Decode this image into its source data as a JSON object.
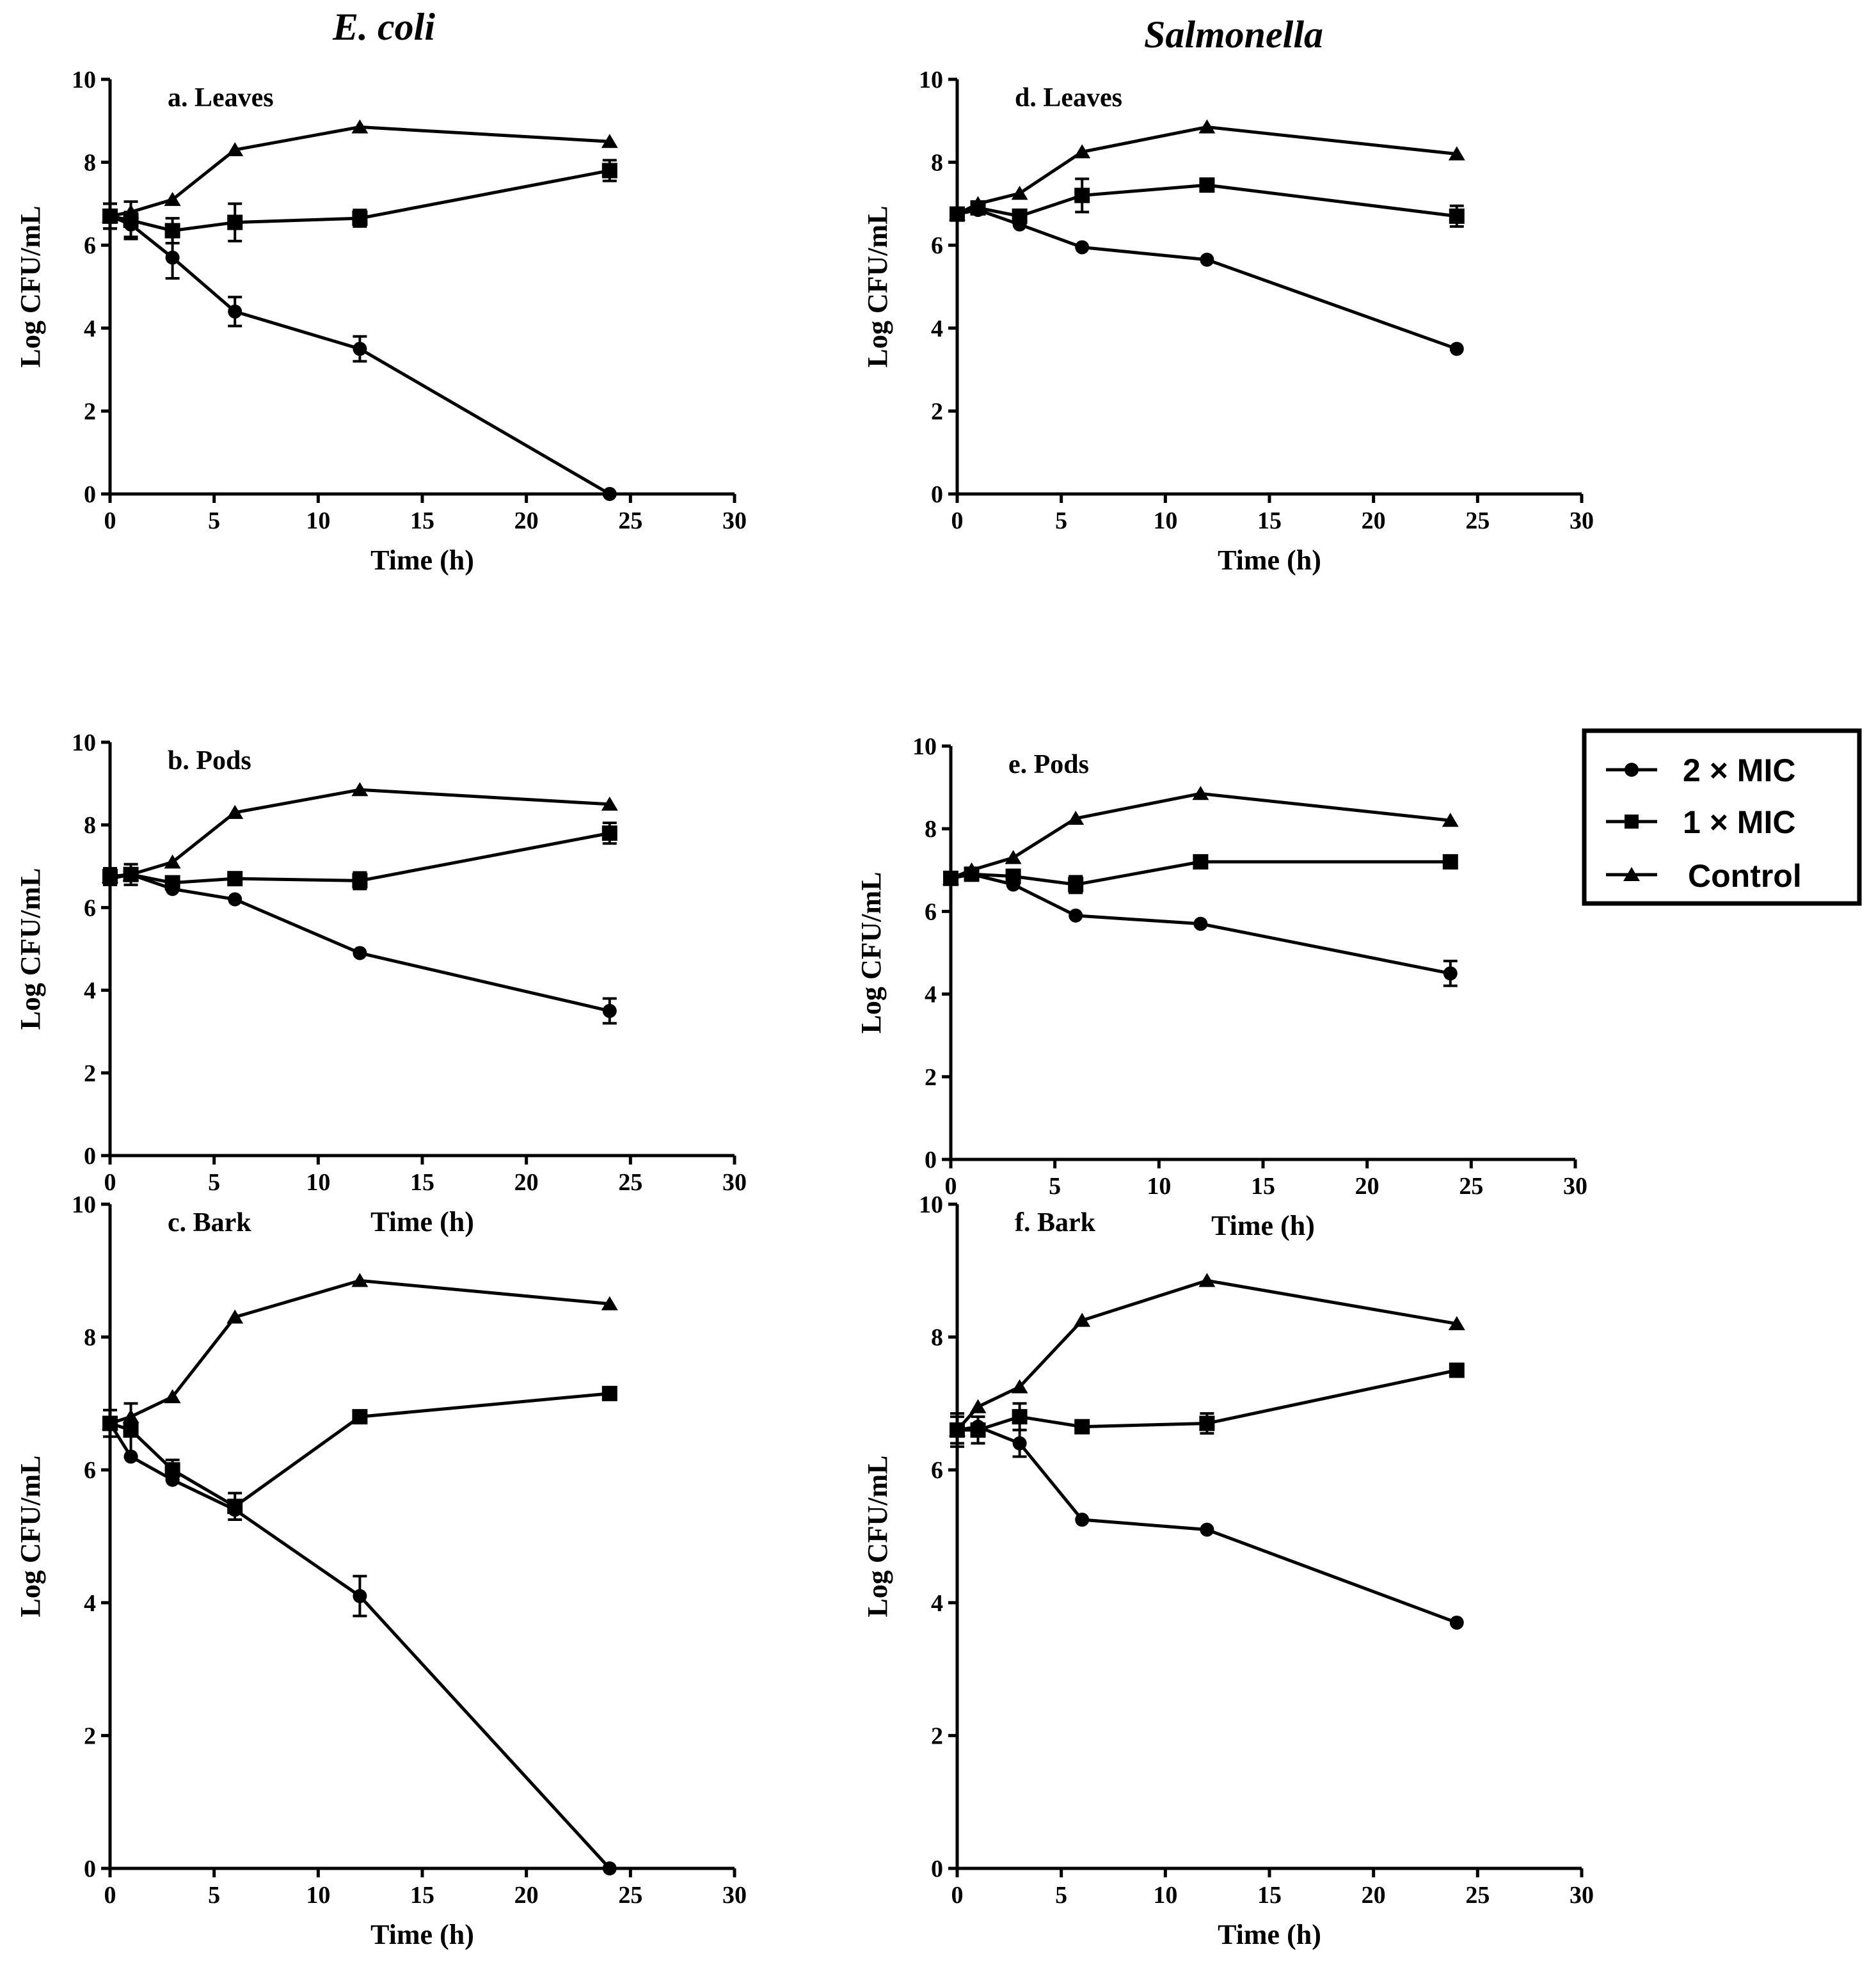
{
  "column_titles": [
    "E. coli",
    "Salmonella"
  ],
  "legend": {
    "entries": [
      {
        "label": "2 × MIC",
        "marker": "circle"
      },
      {
        "label": "1 × MIC",
        "marker": "square"
      },
      {
        "label": "Control",
        "marker": "triangle"
      }
    ]
  },
  "chart_data": [
    {
      "type": "line",
      "title": "a. Leaves",
      "xlabel": "Time (h)",
      "ylabel": "Log CFU/mL",
      "xlim": [
        0,
        30
      ],
      "ylim": [
        0,
        10
      ],
      "xticks": [
        "0",
        "5",
        "10",
        "15",
        "20",
        "25",
        "30"
      ],
      "yticks": [
        "0",
        "2",
        "4",
        "6",
        "8",
        "10"
      ],
      "x": [
        0,
        1,
        3,
        6,
        12,
        24
      ],
      "series": [
        {
          "name": "2 × MIC",
          "values": [
            6.7,
            6.5,
            5.7,
            4.4,
            3.5,
            0.0
          ],
          "errors": [
            0.3,
            0.3,
            0.5,
            0.35,
            0.3,
            0.05
          ]
        },
        {
          "name": "1 × MIC",
          "values": [
            6.7,
            6.6,
            6.35,
            6.55,
            6.65,
            7.8
          ],
          "errors": [
            0.3,
            0.45,
            0.3,
            0.45,
            0.2,
            0.25
          ]
        },
        {
          "name": "Control",
          "values": [
            6.7,
            6.8,
            7.1,
            8.3,
            8.85,
            8.5
          ],
          "errors": [
            0,
            0,
            0,
            0,
            0,
            0
          ]
        }
      ]
    },
    {
      "type": "line",
      "title": "b. Pods",
      "xlabel": "Time (h)",
      "ylabel": "Log CFU/mL",
      "xlim": [
        0,
        30
      ],
      "ylim": [
        0,
        10
      ],
      "xticks": [
        "0",
        "5",
        "10",
        "15",
        "20",
        "25",
        "30"
      ],
      "yticks": [
        "0",
        "2",
        "4",
        "6",
        "8",
        "10"
      ],
      "x": [
        0,
        1,
        3,
        6,
        12,
        24
      ],
      "series": [
        {
          "name": "2 × MIC",
          "values": [
            6.7,
            6.8,
            6.45,
            6.2,
            4.9,
            3.5
          ],
          "errors": [
            0.15,
            0.1,
            0.1,
            0.1,
            0.1,
            0.3
          ]
        },
        {
          "name": "1 × MIC",
          "values": [
            6.75,
            6.8,
            6.6,
            6.7,
            6.65,
            7.8
          ],
          "errors": [
            0.2,
            0.25,
            0.15,
            0.15,
            0.2,
            0.25
          ]
        },
        {
          "name": "Control",
          "values": [
            6.75,
            6.8,
            7.1,
            8.3,
            8.85,
            8.5
          ],
          "errors": [
            0,
            0,
            0,
            0,
            0,
            0
          ]
        }
      ]
    },
    {
      "type": "line",
      "title": "c. Bark",
      "xlabel": "Time (h)",
      "ylabel": "Log CFU/mL",
      "xlim": [
        0,
        30
      ],
      "ylim": [
        0,
        10
      ],
      "xticks": [
        "0",
        "5",
        "10",
        "15",
        "20",
        "25",
        "30"
      ],
      "yticks": [
        "0",
        "2",
        "4",
        "6",
        "8",
        "10"
      ],
      "x": [
        0,
        1,
        3,
        6,
        12,
        24
      ],
      "series": [
        {
          "name": "2 × MIC",
          "values": [
            6.7,
            6.2,
            5.85,
            5.4,
            4.1,
            0.0
          ],
          "errors": [
            0.1,
            0.1,
            0.1,
            0.1,
            0.3,
            0.05
          ]
        },
        {
          "name": "1 × MIC",
          "values": [
            6.7,
            6.6,
            6.0,
            5.45,
            6.8,
            7.15
          ],
          "errors": [
            0.2,
            0.4,
            0.15,
            0.2,
            0.1,
            0.1
          ]
        },
        {
          "name": "Control",
          "values": [
            6.7,
            6.8,
            7.1,
            8.3,
            8.85,
            8.5
          ],
          "errors": [
            0,
            0,
            0,
            0,
            0,
            0
          ]
        }
      ]
    },
    {
      "type": "line",
      "title": "d. Leaves",
      "xlabel": "Time (h)",
      "ylabel": "Log CFU/mL",
      "xlim": [
        0,
        30
      ],
      "ylim": [
        0,
        10
      ],
      "xticks": [
        "0",
        "5",
        "10",
        "15",
        "20",
        "25",
        "30"
      ],
      "yticks": [
        "0",
        "2",
        "4",
        "6",
        "8",
        "10"
      ],
      "x": [
        0,
        1,
        3,
        6,
        12,
        24
      ],
      "series": [
        {
          "name": "2 × MIC",
          "values": [
            6.75,
            6.85,
            6.5,
            5.95,
            5.65,
            3.5
          ],
          "errors": [
            0.1,
            0.1,
            0.1,
            0.1,
            0.1,
            0.1
          ]
        },
        {
          "name": "1 × MIC",
          "values": [
            6.75,
            6.9,
            6.7,
            7.2,
            7.45,
            6.7
          ],
          "errors": [
            0.15,
            0.1,
            0.1,
            0.4,
            0.1,
            0.25
          ]
        },
        {
          "name": "Control",
          "values": [
            6.75,
            7.0,
            7.25,
            8.25,
            8.85,
            8.2
          ],
          "errors": [
            0,
            0,
            0,
            0,
            0,
            0
          ]
        }
      ]
    },
    {
      "type": "line",
      "title": "e. Pods",
      "xlabel": "Time (h)",
      "ylabel": "Log CFU/mL",
      "xlim": [
        0,
        30
      ],
      "ylim": [
        0,
        10
      ],
      "xticks": [
        "0",
        "5",
        "10",
        "15",
        "20",
        "25",
        "30"
      ],
      "yticks": [
        "0",
        "2",
        "4",
        "6",
        "8",
        "10"
      ],
      "x": [
        0,
        1,
        3,
        6,
        12,
        24
      ],
      "series": [
        {
          "name": "2 × MIC",
          "values": [
            6.8,
            6.9,
            6.65,
            5.9,
            5.7,
            4.5
          ],
          "errors": [
            0.1,
            0.1,
            0.1,
            0.1,
            0.1,
            0.3
          ]
        },
        {
          "name": "1 × MIC",
          "values": [
            6.8,
            6.9,
            6.85,
            6.65,
            7.2,
            7.2
          ],
          "errors": [
            0.15,
            0.1,
            0.1,
            0.2,
            0.1,
            0.1
          ]
        },
        {
          "name": "Control",
          "values": [
            6.8,
            7.0,
            7.3,
            8.25,
            8.85,
            8.2
          ],
          "errors": [
            0,
            0,
            0,
            0,
            0,
            0
          ]
        }
      ]
    },
    {
      "type": "line",
      "title": "f. Bark",
      "xlabel": "Time (h)",
      "ylabel": "Log CFU/mL",
      "xlim": [
        0,
        30
      ],
      "ylim": [
        0,
        10
      ],
      "xticks": [
        "0",
        "5",
        "10",
        "15",
        "20",
        "25",
        "30"
      ],
      "yticks": [
        "0",
        "2",
        "4",
        "6",
        "8",
        "10"
      ],
      "x": [
        0,
        1,
        3,
        6,
        12,
        24
      ],
      "series": [
        {
          "name": "2 × MIC",
          "values": [
            6.6,
            6.65,
            6.4,
            5.25,
            5.1,
            3.7
          ],
          "errors": [
            0.2,
            0.1,
            0.2,
            0.1,
            0.1,
            0.1
          ]
        },
        {
          "name": "1 × MIC",
          "values": [
            6.6,
            6.6,
            6.8,
            6.65,
            6.7,
            7.5
          ],
          "errors": [
            0.25,
            0.2,
            0.2,
            0.1,
            0.15,
            0.1
          ]
        },
        {
          "name": "Control",
          "values": [
            6.6,
            6.95,
            7.25,
            8.25,
            8.85,
            8.2
          ],
          "errors": [
            0,
            0,
            0,
            0,
            0,
            0
          ]
        }
      ]
    }
  ]
}
